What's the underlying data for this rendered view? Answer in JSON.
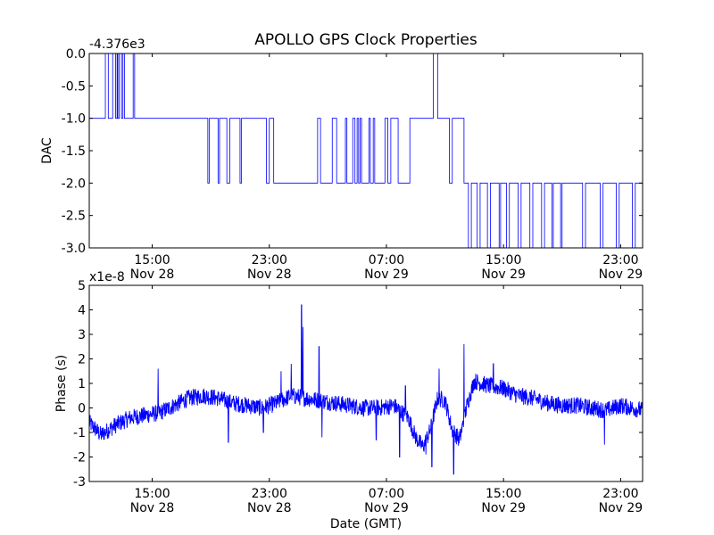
{
  "title": "APOLLO GPS Clock Properties",
  "chart_data": [
    {
      "type": "line",
      "ylabel": "DAC",
      "offset_text": "-4.376e3",
      "ylim": [
        -3.0,
        0.0
      ],
      "y_ticks": [
        {
          "value": 0.0,
          "label": "0.0"
        },
        {
          "value": -0.5,
          "label": "-0.5"
        },
        {
          "value": -1.0,
          "label": "-1.0"
        },
        {
          "value": -1.5,
          "label": "-1.5"
        },
        {
          "value": -2.0,
          "label": "-2.0"
        },
        {
          "value": -2.5,
          "label": "-2.5"
        },
        {
          "value": -3.0,
          "label": "-3.0"
        }
      ],
      "x_range_hours": [
        10.7,
        48.5
      ],
      "x_ticks": [
        {
          "hour": 15,
          "time": "15:00",
          "date": "Nov 28"
        },
        {
          "hour": 23,
          "time": "23:00",
          "date": "Nov 28"
        },
        {
          "hour": 31,
          "time": "07:00",
          "date": "Nov 29"
        },
        {
          "hour": 39,
          "time": "15:00",
          "date": "Nov 29"
        },
        {
          "hour": 47,
          "time": "23:00",
          "date": "Nov 29"
        }
      ],
      "series": [
        {
          "color": "#0000ff",
          "points": [
            [
              10.7,
              -1
            ],
            [
              11.8,
              -1
            ],
            [
              11.8,
              0
            ],
            [
              12.0,
              0
            ],
            [
              12.0,
              -1
            ],
            [
              12.3,
              -1
            ],
            [
              12.3,
              0
            ],
            [
              12.5,
              0
            ],
            [
              12.5,
              -1
            ],
            [
              12.6,
              -1
            ],
            [
              12.6,
              0
            ],
            [
              12.65,
              0
            ],
            [
              12.65,
              -1
            ],
            [
              12.75,
              -1
            ],
            [
              12.75,
              0
            ],
            [
              12.9,
              0
            ],
            [
              12.9,
              -1
            ],
            [
              13.0,
              -1
            ],
            [
              13.0,
              0
            ],
            [
              13.1,
              0
            ],
            [
              13.1,
              -1
            ],
            [
              13.7,
              -1
            ],
            [
              13.7,
              0
            ],
            [
              13.8,
              0
            ],
            [
              13.8,
              -1
            ],
            [
              18.8,
              -1
            ],
            [
              18.8,
              -2
            ],
            [
              18.9,
              -2
            ],
            [
              18.9,
              -1
            ],
            [
              19.5,
              -1
            ],
            [
              19.5,
              -2
            ],
            [
              19.6,
              -2
            ],
            [
              19.6,
              -1
            ],
            [
              20.1,
              -1
            ],
            [
              20.1,
              -2
            ],
            [
              20.3,
              -2
            ],
            [
              20.3,
              -1
            ],
            [
              21.0,
              -1
            ],
            [
              21.0,
              -2
            ],
            [
              21.1,
              -2
            ],
            [
              21.1,
              -1
            ],
            [
              22.8,
              -1
            ],
            [
              22.8,
              -2
            ],
            [
              23.0,
              -2
            ],
            [
              23.0,
              -1
            ],
            [
              23.3,
              -1
            ],
            [
              23.3,
              -2
            ],
            [
              26.3,
              -2
            ],
            [
              26.3,
              -1
            ],
            [
              26.5,
              -1
            ],
            [
              26.5,
              -2
            ],
            [
              27.3,
              -2
            ],
            [
              27.3,
              -1
            ],
            [
              27.6,
              -1
            ],
            [
              27.6,
              -2
            ],
            [
              28.2,
              -2
            ],
            [
              28.2,
              -1
            ],
            [
              28.3,
              -1
            ],
            [
              28.3,
              -2
            ],
            [
              28.7,
              -2
            ],
            [
              28.7,
              -1
            ],
            [
              28.85,
              -1
            ],
            [
              28.85,
              -2
            ],
            [
              29.0,
              -2
            ],
            [
              29.0,
              -1
            ],
            [
              29.1,
              -1
            ],
            [
              29.1,
              -2
            ],
            [
              29.2,
              -2
            ],
            [
              29.2,
              -1
            ],
            [
              29.3,
              -1
            ],
            [
              29.3,
              -2
            ],
            [
              29.8,
              -2
            ],
            [
              29.8,
              -1
            ],
            [
              29.9,
              -1
            ],
            [
              29.9,
              -2
            ],
            [
              30.1,
              -2
            ],
            [
              30.1,
              -1
            ],
            [
              30.2,
              -1
            ],
            [
              30.2,
              -2
            ],
            [
              30.9,
              -2
            ],
            [
              30.9,
              -1
            ],
            [
              31.1,
              -1
            ],
            [
              31.1,
              -2
            ],
            [
              31.3,
              -2
            ],
            [
              31.3,
              -1
            ],
            [
              31.8,
              -1
            ],
            [
              31.8,
              -2
            ],
            [
              32.6,
              -2
            ],
            [
              32.6,
              -1
            ],
            [
              34.2,
              -1
            ],
            [
              34.2,
              0
            ],
            [
              34.5,
              0
            ],
            [
              34.5,
              -1
            ],
            [
              35.3,
              -1
            ],
            [
              35.3,
              -2
            ],
            [
              35.5,
              -2
            ],
            [
              35.5,
              -1
            ],
            [
              36.3,
              -1
            ],
            [
              36.3,
              -2
            ],
            [
              36.6,
              -2
            ],
            [
              36.6,
              -3
            ],
            [
              36.8,
              -3
            ],
            [
              36.8,
              -2
            ],
            [
              37.2,
              -2
            ],
            [
              37.2,
              -3
            ],
            [
              37.4,
              -3
            ],
            [
              37.4,
              -2
            ],
            [
              37.9,
              -2
            ],
            [
              37.9,
              -3
            ],
            [
              38.1,
              -3
            ],
            [
              38.1,
              -2
            ],
            [
              38.7,
              -2
            ],
            [
              38.7,
              -3
            ],
            [
              38.8,
              -3
            ],
            [
              38.8,
              -2
            ],
            [
              39.2,
              -2
            ],
            [
              39.2,
              -3
            ],
            [
              39.4,
              -3
            ],
            [
              39.4,
              -2
            ],
            [
              40.0,
              -2
            ],
            [
              40.0,
              -3
            ],
            [
              40.2,
              -3
            ],
            [
              40.2,
              -2
            ],
            [
              40.8,
              -2
            ],
            [
              40.8,
              -3
            ],
            [
              41.0,
              -3
            ],
            [
              41.0,
              -2
            ],
            [
              41.6,
              -2
            ],
            [
              41.6,
              -3
            ],
            [
              41.8,
              -3
            ],
            [
              41.8,
              -2
            ],
            [
              42.3,
              -2
            ],
            [
              42.3,
              -3
            ],
            [
              42.4,
              -3
            ],
            [
              42.4,
              -2
            ],
            [
              42.9,
              -2
            ],
            [
              42.9,
              -3
            ],
            [
              43.0,
              -3
            ],
            [
              43.0,
              -2
            ],
            [
              44.4,
              -2
            ],
            [
              44.4,
              -3
            ],
            [
              44.6,
              -3
            ],
            [
              44.6,
              -2
            ],
            [
              45.6,
              -2
            ],
            [
              45.6,
              -3
            ],
            [
              45.8,
              -3
            ],
            [
              45.8,
              -2
            ],
            [
              46.7,
              -2
            ],
            [
              46.7,
              -3
            ],
            [
              46.9,
              -3
            ],
            [
              46.9,
              -2
            ],
            [
              47.8,
              -2
            ],
            [
              47.8,
              -3
            ],
            [
              48.0,
              -3
            ],
            [
              48.0,
              -2
            ],
            [
              48.5,
              -2
            ]
          ]
        }
      ]
    },
    {
      "type": "line",
      "ylabel": "Phase (s)",
      "xlabel": "Date (GMT)",
      "offset_text": "x1e-8",
      "ylim": [
        -3,
        5
      ],
      "y_ticks": [
        {
          "value": -3,
          "label": "-3"
        },
        {
          "value": -2,
          "label": "-2"
        },
        {
          "value": -1,
          "label": "-1"
        },
        {
          "value": 0,
          "label": "0"
        },
        {
          "value": 1,
          "label": "1"
        },
        {
          "value": 2,
          "label": "2"
        },
        {
          "value": 3,
          "label": "3"
        },
        {
          "value": 4,
          "label": "4"
        },
        {
          "value": 5,
          "label": "5"
        }
      ],
      "x_range_hours": [
        10.7,
        48.5
      ],
      "x_ticks": [
        {
          "hour": 15,
          "time": "15:00",
          "date": "Nov 28"
        },
        {
          "hour": 23,
          "time": "23:00",
          "date": "Nov 28"
        },
        {
          "hour": 31,
          "time": "07:00",
          "date": "Nov 29"
        },
        {
          "hour": 39,
          "time": "15:00",
          "date": "Nov 29"
        },
        {
          "hour": 47,
          "time": "23:00",
          "date": "Nov 29"
        }
      ],
      "series": [
        {
          "color": "#0000ff",
          "trend_hours": [
            10.7,
            11.5,
            12.5,
            13.5,
            14.5,
            15.5,
            16.5,
            17.5,
            18.5,
            19.5,
            20.5,
            21.5,
            22.5,
            23.5,
            24.5,
            25.5,
            26.5,
            27.5,
            28.5,
            29.5,
            30.5,
            31.5,
            32.5,
            33.0,
            33.5,
            34.0,
            34.5,
            35.0,
            35.5,
            36.0,
            36.5,
            37.0,
            38.0,
            39.0,
            40.0,
            41.0,
            42.0,
            43.0,
            44.0,
            45.0,
            46.0,
            47.0,
            48.5
          ],
          "trend_values": [
            -0.6,
            -1.1,
            -0.7,
            -0.4,
            -0.3,
            -0.2,
            0.1,
            0.4,
            0.5,
            0.4,
            0.2,
            0.1,
            0.0,
            0.2,
            0.5,
            0.4,
            0.3,
            0.2,
            0.1,
            0.0,
            0.0,
            0.1,
            -0.4,
            -1.2,
            -1.6,
            -0.9,
            0.4,
            0.3,
            -0.9,
            -1.3,
            0.1,
            1.1,
            0.9,
            0.8,
            0.5,
            0.4,
            0.2,
            0.1,
            0.1,
            0.0,
            -0.1,
            0.1,
            -0.1
          ],
          "spikes": [
            [
              15.4,
              1.6
            ],
            [
              20.2,
              -1.4
            ],
            [
              22.6,
              -1.0
            ],
            [
              23.8,
              1.5
            ],
            [
              24.5,
              1.8
            ],
            [
              25.2,
              4.2
            ],
            [
              25.3,
              3.3
            ],
            [
              26.4,
              2.5
            ],
            [
              26.6,
              -1.2
            ],
            [
              30.3,
              -1.3
            ],
            [
              31.9,
              -2.0
            ],
            [
              32.3,
              0.9
            ],
            [
              33.7,
              -1.9
            ],
            [
              34.1,
              -2.4
            ],
            [
              34.6,
              1.6
            ],
            [
              35.6,
              -2.7
            ],
            [
              36.3,
              2.6
            ],
            [
              38.3,
              1.8
            ],
            [
              45.9,
              -1.5
            ]
          ],
          "noise_amplitude": 0.35
        }
      ]
    }
  ]
}
